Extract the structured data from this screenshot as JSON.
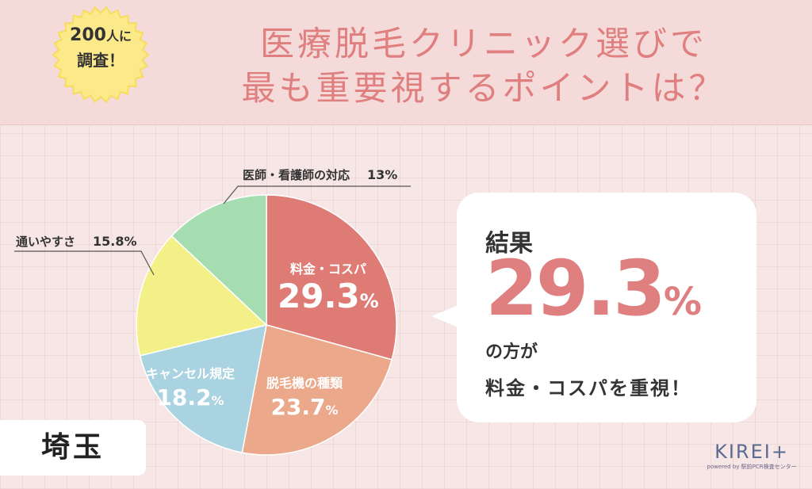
{
  "header": {
    "badge_line1_number": "200",
    "badge_line1_suffix": "人に",
    "badge_line2": "調査！",
    "title_line1": "医療脱毛クリニック選びで",
    "title_line2": "最も重要視するポイントは？"
  },
  "chart_data": {
    "type": "pie",
    "slices": [
      {
        "label": "料金・コスパ",
        "value": 29.3,
        "color": "#de7b74"
      },
      {
        "label": "脱毛機の種類",
        "value": 23.7,
        "color": "#eba88a"
      },
      {
        "label": "キャンセル規定",
        "value": 18.2,
        "color": "#a9d3e0"
      },
      {
        "label": "通いやすさ",
        "value": 15.8,
        "color": "#f4f088"
      },
      {
        "label": "医師・看護師の対応",
        "value": 13,
        "color": "#a5ddb0"
      }
    ],
    "display": {
      "s0_num": "29.3",
      "s1_num": "23.7",
      "s2_num": "18.2",
      "s3_num": "15.8",
      "s4_num": "13",
      "pct": "%"
    }
  },
  "result": {
    "label": "結果",
    "number": "29.3",
    "pct": "%",
    "line1": "の方が",
    "line2": "料金・コスパを重視！"
  },
  "region": "埼玉",
  "logo": {
    "name": "KIREI+",
    "sub": "powered by 駅前PCR検査センター"
  },
  "colors": {
    "accent": "#e07f7f",
    "badge": "#fbe98a"
  }
}
